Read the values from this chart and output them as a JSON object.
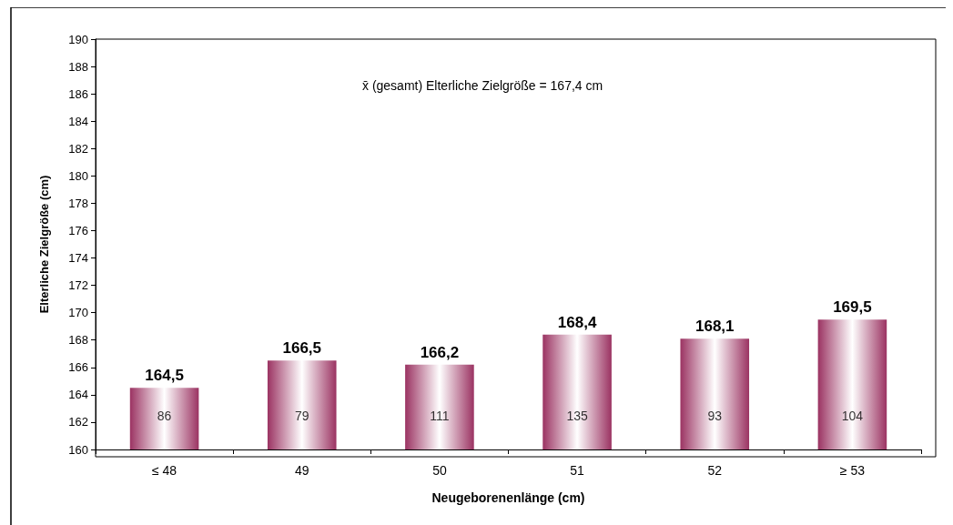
{
  "chart_data": {
    "type": "bar",
    "xlabel": "Neugeborenenlänge (cm)",
    "ylabel": "Elterliche Zielgröße (cm)",
    "categories": [
      "≤ 48",
      "49",
      "50",
      "51",
      "52",
      "≥ 53"
    ],
    "values": [
      164.5,
      166.5,
      166.2,
      168.4,
      168.1,
      169.5
    ],
    "value_labels": [
      "164,5",
      "166,5",
      "166,2",
      "168,4",
      "168,1",
      "169,5"
    ],
    "color": "#9b3362",
    "ylim": [
      160,
      190
    ],
    "yticks": [
      160,
      162,
      164,
      166,
      168,
      170,
      172,
      174,
      176,
      178,
      180,
      182,
      184,
      186,
      188,
      190
    ],
    "grid": false,
    "annotations": [
      "x̄ (gesamt) Elterliche Zielgröße = 167,4 cm",
      "86",
      "79",
      "111",
      "135",
      "93",
      "104"
    ]
  }
}
